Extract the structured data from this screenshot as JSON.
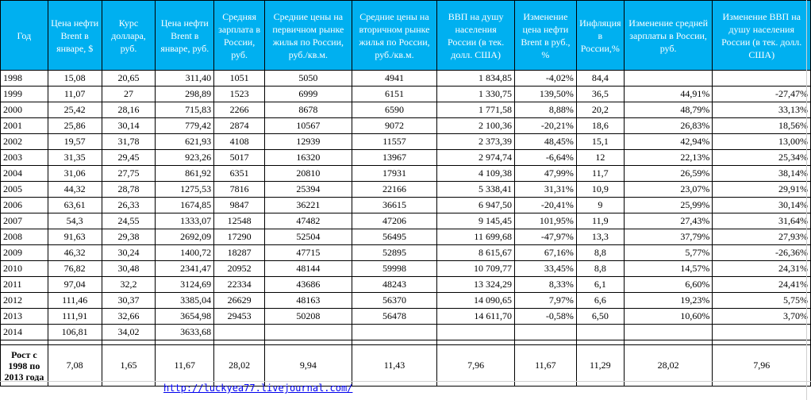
{
  "headers": [
    "Год",
    "Цена нефти Brent в январе, $",
    "Курс доллара, руб.",
    "Цена нефти Brent в январе, руб.",
    "Средняя зарплата в России, руб.",
    "Средние цены на первичном рынке жилья по России, руб./кв.м.",
    "Средние цены на вторичном рынке жилья по России, руб./кв.м.",
    "ВВП на душу населения России (в тек. долл. США)",
    "Изменение цена нефти Brent в руб., %",
    "Инфляция в России,%",
    "Изменение средней зарплаты в России, руб.",
    "Изменение ВВП на душу населения России (в тек. долл. США)"
  ],
  "rows": [
    [
      "1998",
      "15,08",
      "20,65",
      "311,40",
      "1051",
      "5050",
      "4941",
      "1 834,85",
      "-4,02%",
      "84,4",
      "",
      ""
    ],
    [
      "1999",
      "11,07",
      "27",
      "298,89",
      "1523",
      "6999",
      "6151",
      "1 330,75",
      "139,50%",
      "36,5",
      "44,91%",
      "-27,47%"
    ],
    [
      "2000",
      "25,42",
      "28,16",
      "715,83",
      "2266",
      "8678",
      "6590",
      "1 771,58",
      "8,88%",
      "20,2",
      "48,79%",
      "33,13%"
    ],
    [
      "2001",
      "25,86",
      "30,14",
      "779,42",
      "2874",
      "10567",
      "9072",
      "2 100,36",
      "-20,21%",
      "18,6",
      "26,83%",
      "18,56%"
    ],
    [
      "2002",
      "19,57",
      "31,78",
      "621,93",
      "4108",
      "12939",
      "11557",
      "2 373,39",
      "48,45%",
      "15,1",
      "42,94%",
      "13,00%"
    ],
    [
      "2003",
      "31,35",
      "29,45",
      "923,26",
      "5017",
      "16320",
      "13967",
      "2 974,74",
      "-6,64%",
      "12",
      "22,13%",
      "25,34%"
    ],
    [
      "2004",
      "31,06",
      "27,75",
      "861,92",
      "6351",
      "20810",
      "17931",
      "4 109,38",
      "47,99%",
      "11,7",
      "26,59%",
      "38,14%"
    ],
    [
      "2005",
      "44,32",
      "28,78",
      "1275,53",
      "7816",
      "25394",
      "22166",
      "5 338,41",
      "31,31%",
      "10,9",
      "23,07%",
      "29,91%"
    ],
    [
      "2006",
      "63,61",
      "26,33",
      "1674,85",
      "9847",
      "36221",
      "36615",
      "6 947,50",
      "-20,41%",
      "9",
      "25,99%",
      "30,14%"
    ],
    [
      "2007",
      "54,3",
      "24,55",
      "1333,07",
      "12548",
      "47482",
      "47206",
      "9 145,45",
      "101,95%",
      "11,9",
      "27,43%",
      "31,64%"
    ],
    [
      "2008",
      "91,63",
      "29,38",
      "2692,09",
      "17290",
      "52504",
      "56495",
      "11 699,68",
      "-47,97%",
      "13,3",
      "37,79%",
      "27,93%"
    ],
    [
      "2009",
      "46,32",
      "30,24",
      "1400,72",
      "18287",
      "47715",
      "52895",
      "8 615,67",
      "67,16%",
      "8,8",
      "5,77%",
      "-26,36%"
    ],
    [
      "2010",
      "76,82",
      "30,48",
      "2341,47",
      "20952",
      "48144",
      "59998",
      "10 709,77",
      "33,45%",
      "8,8",
      "14,57%",
      "24,31%"
    ],
    [
      "2011",
      "97,04",
      "32,2",
      "3124,69",
      "22334",
      "43686",
      "48243",
      "13 324,29",
      "8,33%",
      "6,1",
      "6,60%",
      "24,41%"
    ],
    [
      "2012",
      "111,46",
      "30,37",
      "3385,04",
      "26629",
      "48163",
      "56370",
      "14 090,65",
      "7,97%",
      "6,6",
      "19,23%",
      "5,75%"
    ],
    [
      "2013",
      "111,91",
      "32,66",
      "3654,98",
      "29453",
      "50208",
      "56478",
      "14 611,70",
      "-0,58%",
      "6,50",
      "10,60%",
      "3,70%"
    ],
    [
      "2014",
      "106,81",
      "34,02",
      "3633,68",
      "",
      "",
      "",
      "",
      "",
      "",
      "",
      ""
    ]
  ],
  "total": [
    "Рост с 1998 по 2013 года",
    "7,08",
    "1,65",
    "11,67",
    "28,02",
    "9,94",
    "11,43",
    "7,96",
    "11,67",
    "11,29",
    "28,02",
    "7,96"
  ],
  "link": "http://luckyea77.livejournal.com/"
}
